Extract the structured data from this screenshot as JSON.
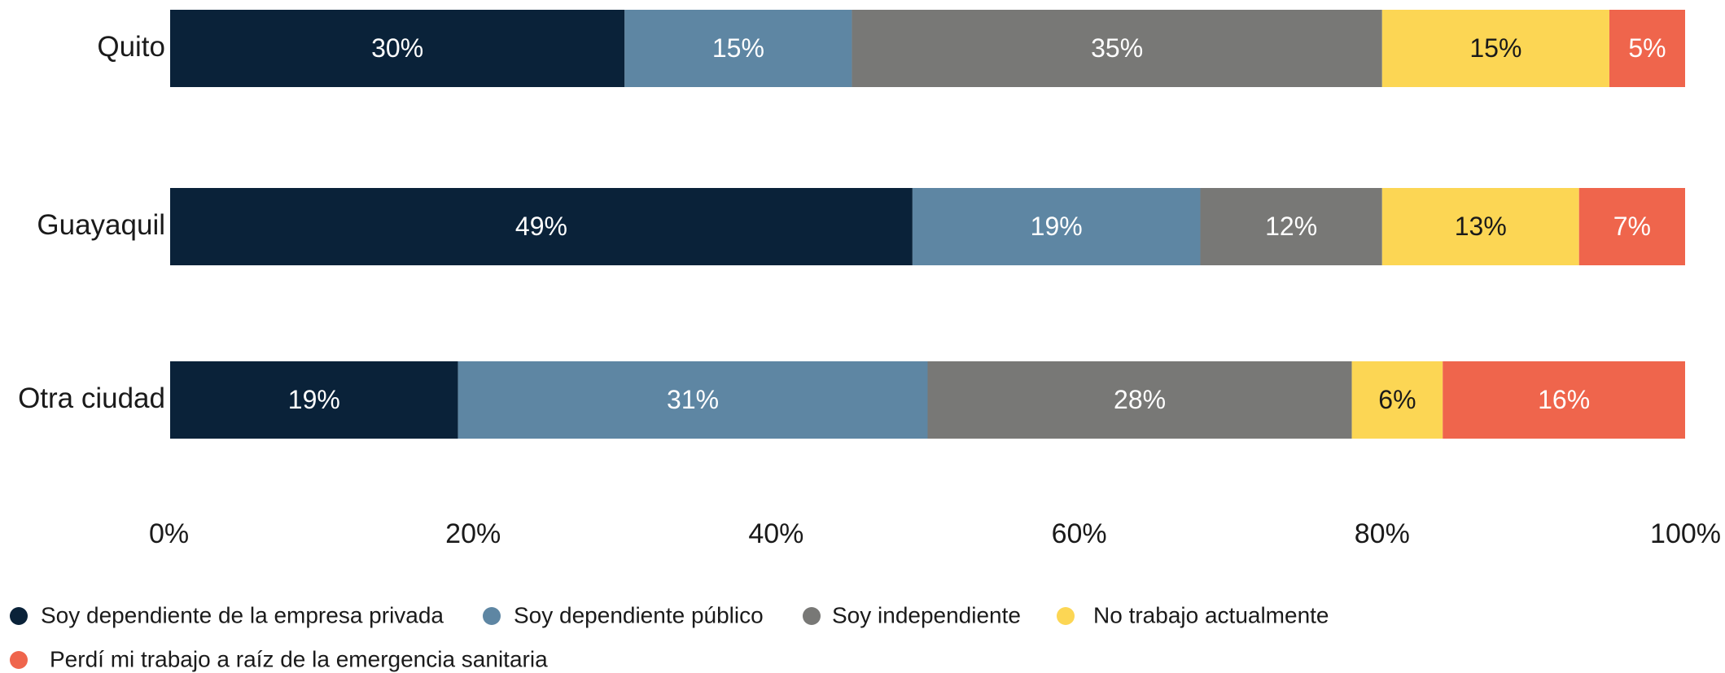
{
  "chart_data": {
    "type": "stacked_barh",
    "categories": [
      "Quito",
      "Guayaquil",
      "Otra ciudad"
    ],
    "series": [
      {
        "name": "Soy dependiente de la empresa privada",
        "color": "#0a2239",
        "values": [
          30,
          49,
          19
        ],
        "value_labels": [
          "30%",
          "49%",
          "19%"
        ]
      },
      {
        "name": "Soy dependiente público",
        "color": "#5e86a3",
        "values": [
          15,
          19,
          31
        ],
        "value_labels": [
          "15%",
          "19%",
          "31%"
        ]
      },
      {
        "name": "Soy independiente",
        "color": "#787876",
        "values": [
          35,
          12,
          28
        ],
        "value_labels": [
          "35%",
          "12%",
          "28%"
        ]
      },
      {
        "name": "No trabajo actualmente",
        "color": "#fcd654",
        "values": [
          15,
          13,
          6
        ],
        "value_labels": [
          "15%",
          "13%",
          "6%"
        ]
      },
      {
        "name": "Perdí mi trabajo a raíz de la emergencia sanitaria",
        "color": "#ef654c",
        "values": [
          5,
          7,
          16
        ],
        "value_labels": [
          "5%",
          "7%",
          "16%"
        ]
      }
    ],
    "xlim": [
      0,
      100
    ],
    "xticks": [
      {
        "value": 0,
        "label": "0%"
      },
      {
        "value": 20,
        "label": "20%"
      },
      {
        "value": 40,
        "label": "40%"
      },
      {
        "value": 60,
        "label": "60%"
      },
      {
        "value": 80,
        "label": "80%"
      },
      {
        "value": 100,
        "label": "100%"
      }
    ],
    "legend": "bottom"
  }
}
